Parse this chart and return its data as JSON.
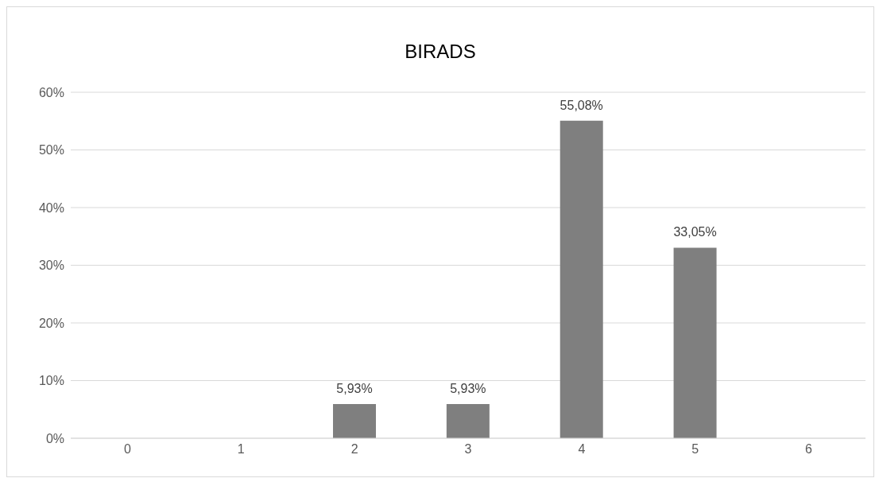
{
  "chart_data": {
    "type": "bar",
    "title": "BIRADS",
    "categories": [
      "0",
      "1",
      "2",
      "3",
      "4",
      "5",
      "6"
    ],
    "values": [
      null,
      null,
      5.93,
      5.93,
      55.08,
      33.05,
      null
    ],
    "value_labels": [
      null,
      null,
      "5,93%",
      "5,93%",
      "55,08%",
      "33,05%",
      null
    ],
    "color": "#7f7f7f",
    "ylim": [
      0,
      60
    ],
    "yticks": [
      {
        "value": 0,
        "label": "0%"
      },
      {
        "value": 10,
        "label": "10%"
      },
      {
        "value": 20,
        "label": "20%"
      },
      {
        "value": 30,
        "label": "30%"
      },
      {
        "value": 40,
        "label": "40%"
      },
      {
        "value": 50,
        "label": "50%"
      },
      {
        "value": 60,
        "label": "60%"
      }
    ],
    "grid": "y",
    "legend": false
  }
}
